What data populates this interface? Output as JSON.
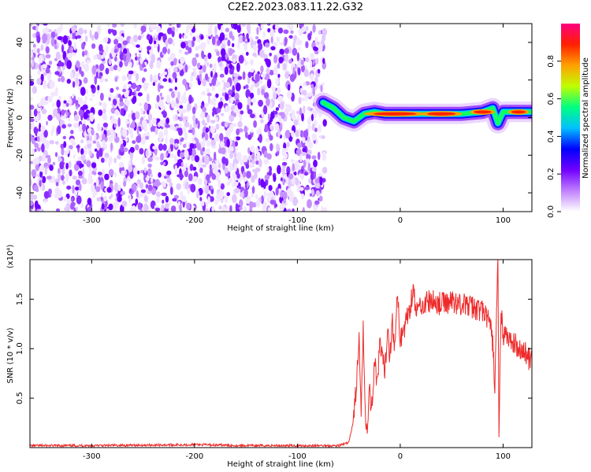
{
  "title": "C2E2.2023.083.11.22.G32",
  "chart_data": [
    {
      "type": "heatmap",
      "xlabel": "Height of straight line (km)",
      "ylabel": "Frequency (Hz)",
      "xlim": [
        -360,
        128
      ],
      "ylim": [
        -50,
        50
      ],
      "x_ticks": [
        -300,
        -200,
        -100,
        0,
        100
      ],
      "y_ticks": [
        -40,
        -20,
        0,
        20,
        40
      ],
      "colorbar": {
        "label": "Normalized spectral amplitude",
        "range": [
          0.0,
          1.0
        ],
        "ticks": [
          0.0,
          0.2,
          0.4,
          0.6,
          0.8
        ],
        "colors": [
          "#ffffff",
          "#c080ff",
          "#7000ff",
          "#0000ff",
          "#00c0ff",
          "#00ff80",
          "#c0ff00",
          "#ffa000",
          "#ff2000",
          "#ff0080"
        ]
      },
      "noise_region_x": [
        -360,
        -73
      ],
      "signal_ridge": {
        "x": [
          -75,
          -65,
          -55,
          -45,
          -35,
          -25,
          -15,
          -5,
          0,
          20,
          40,
          60,
          80,
          90,
          95,
          100,
          110,
          128
        ],
        "y": [
          8,
          5,
          0,
          -2,
          2,
          3,
          2,
          2,
          2,
          2,
          2,
          2,
          3,
          5,
          -3,
          3,
          3,
          3
        ]
      }
    },
    {
      "type": "line",
      "xlabel": "Height of straight line (km)",
      "ylabel": "SNR (10 * v/v)",
      "y_multiplier": "(x10⁴)",
      "xlim": [
        -360,
        128
      ],
      "ylim": [
        0,
        1.9
      ],
      "x_ticks": [
        -300,
        -200,
        -100,
        0,
        100
      ],
      "y_ticks": [
        0.5,
        1.0,
        1.5
      ],
      "y_tick_labels": [
        "0.5",
        "1.0",
        "1.5"
      ],
      "series": [
        {
          "color": "#ee2a2a",
          "x": [
            -360,
            -300,
            -200,
            -150,
            -100,
            -60,
            -50,
            -46,
            -42,
            -40,
            -38,
            -36,
            -34,
            -32,
            -30,
            -28,
            -25,
            -22,
            -20,
            -15,
            -12,
            -10,
            -8,
            -5,
            -3,
            0,
            5,
            10,
            13,
            15,
            20,
            30,
            40,
            50,
            60,
            70,
            80,
            85,
            88,
            90,
            92,
            94,
            95,
            96,
            98,
            100,
            110,
            120,
            125,
            128
          ],
          "y": [
            0.02,
            0.02,
            0.03,
            0.02,
            0.02,
            0.02,
            0.05,
            0.25,
            0.7,
            1.1,
            0.3,
            1.25,
            0.4,
            0.15,
            0.6,
            0.35,
            0.9,
            0.6,
            1.05,
            0.75,
            1.25,
            0.9,
            1.3,
            1.0,
            1.55,
            1.1,
            1.25,
            1.45,
            1.65,
            1.35,
            1.45,
            1.48,
            1.45,
            1.48,
            1.45,
            1.42,
            1.38,
            1.3,
            1.2,
            1.05,
            0.6,
            1.5,
            1.9,
            0.1,
            1.4,
            1.15,
            1.05,
            0.98,
            0.9,
            0.88
          ]
        }
      ]
    }
  ]
}
